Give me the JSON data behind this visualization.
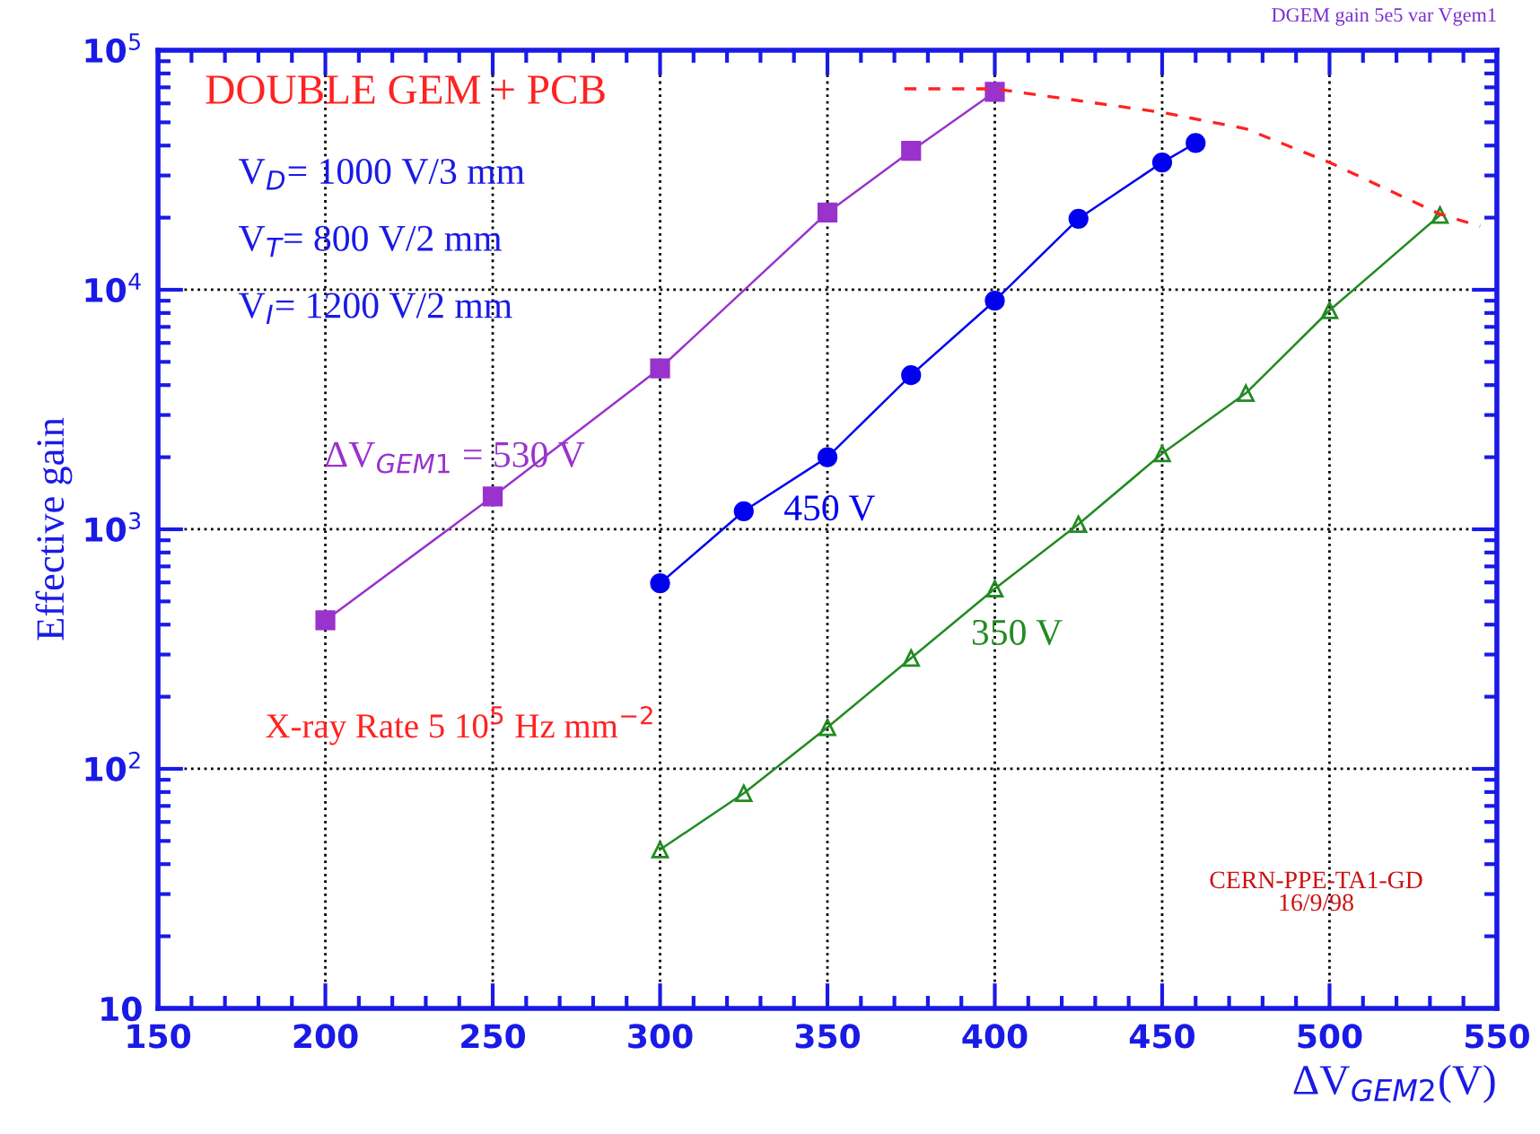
{
  "chart_data": {
    "type": "line",
    "xlabel": "ΔV$_{GEM2}$(V)",
    "ylabel": "Effective gain",
    "log": "y",
    "grid": true,
    "xlim": [
      150,
      550
    ],
    "xticks": [
      150,
      200,
      250,
      300,
      350,
      400,
      450,
      500,
      550
    ],
    "ylim": [
      10,
      100000
    ],
    "yticks": [
      {
        "value": 10,
        "label": "10"
      },
      {
        "value": 100,
        "label": "10$^{2}$"
      },
      {
        "value": 1000,
        "label": "10$^{3}$"
      },
      {
        "value": 10000,
        "label": "10$^{4}$"
      },
      {
        "value": 100000,
        "label": "10$^{5}$"
      }
    ],
    "series": [
      {
        "name": "ΔV$_{GEM1}$ = 530 V",
        "color": "#9933cc",
        "marker": "square",
        "x": [
          200,
          250,
          300,
          350,
          375,
          400
        ],
        "values": [
          417,
          1370,
          4700,
          21000,
          38000,
          67000
        ]
      },
      {
        "name": "450 V",
        "color": "#0000ee",
        "marker": "circle",
        "x": [
          300,
          325,
          350,
          375,
          400,
          425,
          450,
          460
        ],
        "values": [
          595,
          1190,
          2000,
          4400,
          9000,
          19800,
          34000,
          41000
        ]
      },
      {
        "name": "350 V",
        "color": "#228b22",
        "marker": "triangle",
        "x": [
          300,
          325,
          350,
          375,
          400,
          425,
          450,
          475,
          500,
          533
        ],
        "values": [
          46,
          79,
          149,
          290,
          565,
          1050,
          2070,
          3700,
          8200,
          20500
        ]
      },
      {
        "color": "#ff2222",
        "marker": "none",
        "line_style": "dashed",
        "x": [
          373,
          400,
          450,
          475,
          500,
          533,
          545
        ],
        "values": [
          69000,
          69000,
          55000,
          47000,
          34000,
          20700,
          18400
        ]
      }
    ],
    "annotations": [
      "DOUBLE GEM + PCB",
      "V$_{D}$= 1000 V/3 mm",
      "V$_{T}$= 800 V/2 mm",
      "V$_{I}$= 1200 V/2 mm",
      "X-ray Rate 5 10$^{5}$ Hz mm$^{−2}$",
      "CERN-PPE-TA1-GD\n16/9/98",
      "DGEM gain 5e5 var Vgem1"
    ]
  }
}
